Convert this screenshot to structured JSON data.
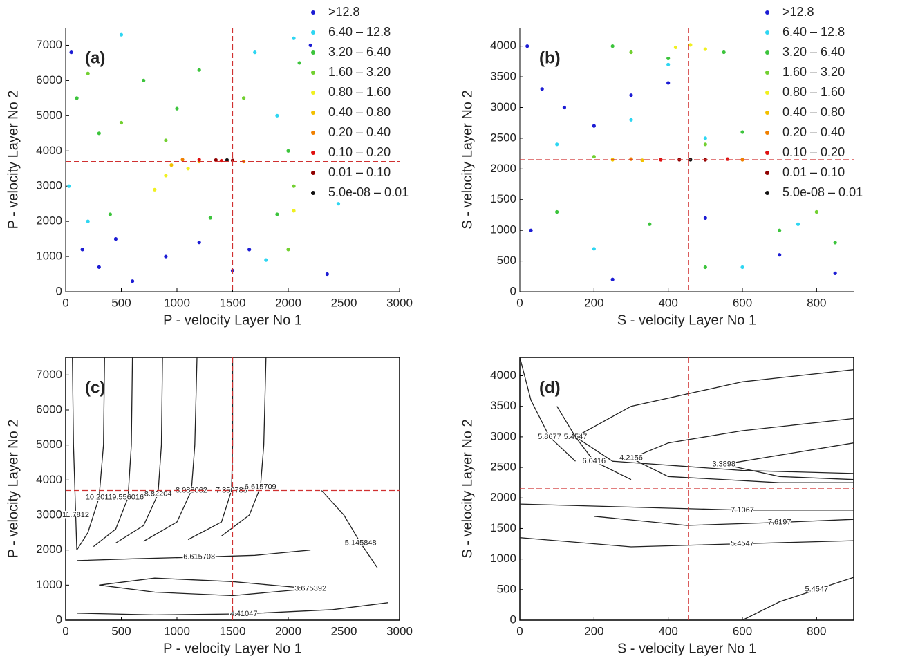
{
  "chart_data": [
    {
      "type": "scatter",
      "label": "(a)",
      "xlabel": "P - velocity Layer No 1",
      "ylabel": "P - velocity Layer No 2",
      "xlim": [
        0,
        3000
      ],
      "ylim": [
        0,
        7500
      ],
      "xticks": [
        0,
        500,
        1000,
        1500,
        2000,
        2500,
        3000
      ],
      "yticks": [
        0,
        1000,
        2000,
        3000,
        4000,
        5000,
        6000,
        7000
      ],
      "crosshair": {
        "x": 1500,
        "y": 3700
      },
      "legend": "upper right",
      "series": [
        {
          "name": ">12.8",
          "color": "#1c1cd4",
          "x": [
            150,
            300,
            450,
            600,
            900,
            1200,
            1500,
            1650,
            2350,
            2200,
            50
          ],
          "y": [
            1200,
            700,
            1500,
            300,
            1000,
            1400,
            600,
            1200,
            500,
            7000,
            6800
          ]
        },
        {
          "name": "6.40 – 12.8",
          "color": "#2ed6f2",
          "x": [
            30,
            200,
            500,
            1700,
            2050,
            2450,
            1900,
            1800
          ],
          "y": [
            3000,
            2000,
            7300,
            6800,
            7200,
            2500,
            5000,
            900
          ]
        },
        {
          "name": "3.20 – 6.40",
          "color": "#3cc43c",
          "x": [
            100,
            300,
            700,
            1000,
            1200,
            2000,
            2100,
            1900,
            400,
            1300
          ],
          "y": [
            5500,
            4500,
            6000,
            5200,
            6300,
            4000,
            6500,
            2200,
            2200,
            2100
          ]
        },
        {
          "name": "1.60 – 3.20",
          "color": "#72d030",
          "x": [
            200,
            500,
            900,
            1600,
            2050,
            2000
          ],
          "y": [
            6200,
            4800,
            4300,
            5500,
            3000,
            1200
          ]
        },
        {
          "name": "0.80 – 1.60",
          "color": "#f0f020",
          "x": [
            800,
            900,
            1100,
            2050
          ],
          "y": [
            2900,
            3300,
            3500,
            2300
          ]
        },
        {
          "name": "0.40 – 0.80",
          "color": "#f2c000",
          "x": [
            950,
            1200
          ],
          "y": [
            3600,
            3700
          ]
        },
        {
          "name": "0.20 – 0.40",
          "color": "#f08000",
          "x": [
            1050,
            1600
          ],
          "y": [
            3750,
            3700
          ]
        },
        {
          "name": "0.10 – 0.20",
          "color": "#e01010",
          "x": [
            1200,
            1400
          ],
          "y": [
            3750,
            3720
          ]
        },
        {
          "name": "0.01 – 0.10",
          "color": "#900000",
          "x": [
            1350,
            1500
          ],
          "y": [
            3740,
            3730
          ]
        },
        {
          "name": "5.0e-08 – 0.01",
          "color": "#111111",
          "x": [
            1450
          ],
          "y": [
            3740
          ]
        }
      ]
    },
    {
      "type": "scatter",
      "label": "(b)",
      "xlabel": "S - velocity Layer No 1",
      "ylabel": "S - velocity Layer No 2",
      "xlim": [
        0,
        900
      ],
      "ylim": [
        0,
        4300
      ],
      "xticks": [
        0,
        200,
        400,
        600,
        800
      ],
      "yticks": [
        0,
        500,
        1000,
        1500,
        2000,
        2500,
        3000,
        3500,
        4000
      ],
      "crosshair": {
        "x": 455,
        "y": 2150
      },
      "legend": "upper right",
      "series": [
        {
          "name": ">12.8",
          "color": "#1c1cd4",
          "x": [
            20,
            60,
            120,
            200,
            300,
            400,
            500,
            700,
            850,
            30,
            250
          ],
          "y": [
            4000,
            3300,
            3000,
            2700,
            3200,
            3400,
            1200,
            600,
            300,
            1000,
            200
          ]
        },
        {
          "name": "6.40 – 12.8",
          "color": "#2ed6f2",
          "x": [
            100,
            300,
            500,
            200,
            600,
            750,
            400
          ],
          "y": [
            2400,
            2800,
            2500,
            700,
            400,
            1100,
            3700
          ]
        },
        {
          "name": "3.20 – 6.40",
          "color": "#3cc43c",
          "x": [
            250,
            400,
            550,
            600,
            100,
            350,
            700,
            850,
            500
          ],
          "y": [
            4000,
            3800,
            3900,
            2600,
            1300,
            1100,
            1000,
            800,
            400
          ]
        },
        {
          "name": "1.60 – 3.20",
          "color": "#72d030",
          "x": [
            300,
            500,
            200,
            800
          ],
          "y": [
            3900,
            2400,
            2200,
            1300
          ]
        },
        {
          "name": "0.80 – 1.60",
          "color": "#f0f020",
          "x": [
            420,
            460,
            500
          ],
          "y": [
            3980,
            4020,
            3950
          ]
        },
        {
          "name": "0.40 – 0.80",
          "color": "#f2c000",
          "x": [
            250,
            330
          ],
          "y": [
            2150,
            2140
          ]
        },
        {
          "name": "0.20 – 0.40",
          "color": "#f08000",
          "x": [
            300,
            600
          ],
          "y": [
            2160,
            2150
          ]
        },
        {
          "name": "0.10 – 0.20",
          "color": "#e01010",
          "x": [
            380,
            560
          ],
          "y": [
            2150,
            2160
          ]
        },
        {
          "name": "0.01 – 0.10",
          "color": "#900000",
          "x": [
            430,
            500
          ],
          "y": [
            2150,
            2150
          ]
        },
        {
          "name": "5.0e-08 – 0.01",
          "color": "#111111",
          "x": [
            460
          ],
          "y": [
            2150
          ]
        }
      ]
    },
    {
      "type": "contour",
      "label": "(c)",
      "xlabel": "P - velocity Layer No 1",
      "ylabel": "P - velocity Layer No 2",
      "xlim": [
        0,
        3000
      ],
      "ylim": [
        0,
        7500
      ],
      "xticks": [
        0,
        500,
        1000,
        1500,
        2000,
        2500,
        3000
      ],
      "yticks": [
        0,
        1000,
        2000,
        3000,
        4000,
        5000,
        6000,
        7000
      ],
      "crosshair": {
        "x": 1500,
        "y": 3700
      },
      "contours": [
        {
          "label": "11.7812",
          "x": [
            60,
            70,
            90,
            100
          ],
          "y": [
            7500,
            5000,
            3000,
            2000
          ]
        },
        {
          "label": "10.2011",
          "x": [
            350,
            340,
            300,
            200,
            100
          ],
          "y": [
            7500,
            5000,
            3500,
            2500,
            2000
          ]
        },
        {
          "label": "9.556016",
          "x": [
            600,
            590,
            560,
            450,
            250
          ],
          "y": [
            7500,
            5000,
            3500,
            2600,
            2100
          ]
        },
        {
          "label": "8.82204",
          "x": [
            870,
            860,
            830,
            700,
            450
          ],
          "y": [
            7500,
            5000,
            3600,
            2700,
            2200
          ]
        },
        {
          "label": "8.088062",
          "x": [
            1180,
            1160,
            1130,
            1000,
            700
          ],
          "y": [
            7500,
            5000,
            3700,
            2800,
            2250
          ]
        },
        {
          "label": "7.350783",
          "x": [
            1500,
            1500,
            1490,
            1400,
            1100
          ],
          "y": [
            7500,
            5000,
            3700,
            2800,
            2300
          ]
        },
        {
          "label": "6.615709",
          "x": [
            1800,
            1780,
            1750,
            1650,
            1400
          ],
          "y": [
            7500,
            5000,
            3800,
            3000,
            2400
          ]
        },
        {
          "label": "6.615708",
          "x": [
            100,
            600,
            1200,
            1700,
            2200
          ],
          "y": [
            1700,
            1750,
            1800,
            1850,
            2000
          ]
        },
        {
          "label": "3.675392",
          "x": [
            300,
            800,
            1500,
            2200,
            1500,
            800,
            300
          ],
          "y": [
            1000,
            800,
            700,
            900,
            1100,
            1200,
            1000
          ]
        },
        {
          "label": "4.41047",
          "x": [
            100,
            800,
            1600,
            2400,
            2900
          ],
          "y": [
            200,
            150,
            180,
            300,
            500
          ]
        },
        {
          "label": "5.145848",
          "x": [
            2300,
            2500,
            2650,
            2800
          ],
          "y": [
            3700,
            3000,
            2200,
            1500
          ]
        }
      ]
    },
    {
      "type": "contour",
      "label": "(d)",
      "xlabel": "S - velocity Layer No 1",
      "ylabel": "S - velocity Layer No 2",
      "xlim": [
        0,
        900
      ],
      "ylim": [
        0,
        4300
      ],
      "xticks": [
        0,
        200,
        400,
        600,
        800
      ],
      "yticks": [
        0,
        500,
        1000,
        1500,
        2000,
        2500,
        3000,
        3500,
        4000
      ],
      "crosshair": {
        "x": 455,
        "y": 2150
      },
      "contours": [
        {
          "label": "5.4547",
          "x": [
            900,
            600,
            300,
            150,
            250,
            600,
            900
          ],
          "y": [
            4100,
            3900,
            3500,
            3000,
            2600,
            2450,
            2400
          ]
        },
        {
          "label": "4.2156",
          "x": [
            900,
            600,
            400,
            300,
            400,
            700,
            900
          ],
          "y": [
            3300,
            3100,
            2900,
            2650,
            2350,
            2250,
            2250
          ]
        },
        {
          "label": "3.3898",
          "x": [
            900,
            700,
            550,
            700,
            900
          ],
          "y": [
            2900,
            2700,
            2550,
            2350,
            2300
          ]
        },
        {
          "label": "7.1067",
          "x": [
            0,
            300,
            600,
            900
          ],
          "y": [
            1900,
            1850,
            1800,
            1800
          ]
        },
        {
          "label": "7.6197",
          "x": [
            200,
            450,
            700,
            900
          ],
          "y": [
            1700,
            1550,
            1600,
            1650
          ]
        },
        {
          "label": "5.4547",
          "x": [
            0,
            300,
            600,
            900
          ],
          "y": [
            1350,
            1200,
            1250,
            1300
          ]
        },
        {
          "label": "5.4547",
          "x": [
            600,
            700,
            800,
            900
          ],
          "y": [
            0,
            300,
            500,
            700
          ]
        },
        {
          "label": "5.8677",
          "x": [
            0,
            30,
            80,
            150
          ],
          "y": [
            4300,
            3600,
            3000,
            2600
          ]
        },
        {
          "label": "6.0416",
          "x": [
            100,
            150,
            200,
            300
          ],
          "y": [
            3500,
            3000,
            2600,
            2300
          ]
        }
      ]
    }
  ]
}
